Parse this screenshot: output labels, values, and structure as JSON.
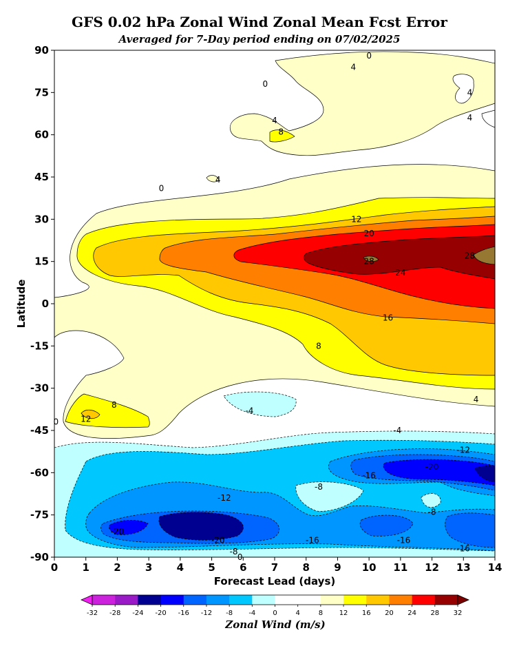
{
  "chart_data": {
    "type": "heatmap",
    "title": "GFS 0.02 hPa Zonal Wind Zonal Mean Fcst Error",
    "subtitle": "Averaged for 7-Day period ending on 07/02/2025",
    "xlabel": "Forecast Lead (days)",
    "ylabel": "Latitude",
    "xlim": [
      0,
      14
    ],
    "ylim": [
      -90,
      90
    ],
    "x_ticks": [
      "0",
      "1",
      "2",
      "3",
      "4",
      "5",
      "6",
      "7",
      "8",
      "9",
      "10",
      "11",
      "12",
      "13",
      "14"
    ],
    "y_ticks": [
      "90",
      "75",
      "60",
      "45",
      "30",
      "15",
      "0",
      "-15",
      "-30",
      "-45",
      "-60",
      "-75",
      "-90"
    ],
    "colorbar": {
      "label": "Zonal Wind (m/s)",
      "levels": [
        -32,
        -28,
        -24,
        -20,
        -16,
        -12,
        -8,
        -4,
        0,
        4,
        8,
        12,
        16,
        20,
        24,
        28,
        32
      ],
      "level_labels": [
        "-32",
        "-28",
        "-24",
        "-20",
        "-16",
        "-12",
        "-8",
        "-4",
        "0",
        "4",
        "8",
        "12",
        "16",
        "20",
        "24",
        "28",
        "32"
      ],
      "colors": [
        "#f020f0",
        "#cc22dd",
        "#9a1ac8",
        "#000090",
        "#0000ff",
        "#0064ff",
        "#0096ff",
        "#00c8ff",
        "#c0ffff",
        "#ffffff",
        "#ffffff",
        "#ffffc8",
        "#ffff00",
        "#ffc800",
        "#ff8000",
        "#ff0000",
        "#960000",
        "#967832",
        "#7a0000"
      ]
    },
    "contour_labels": [
      {
        "text": "0",
        "x": 10.0,
        "y": 88
      },
      {
        "text": "4",
        "x": 9.5,
        "y": 84
      },
      {
        "text": "0",
        "x": 6.7,
        "y": 78
      },
      {
        "text": "4",
        "x": 13.2,
        "y": 75
      },
      {
        "text": "4",
        "x": 13.2,
        "y": 66
      },
      {
        "text": "4",
        "x": 7.0,
        "y": 65
      },
      {
        "text": "8",
        "x": 7.2,
        "y": 61
      },
      {
        "text": "4",
        "x": 5.2,
        "y": 44
      },
      {
        "text": "0",
        "x": 3.4,
        "y": 41
      },
      {
        "text": "12",
        "x": 9.6,
        "y": 30
      },
      {
        "text": "20",
        "x": 10.0,
        "y": 25
      },
      {
        "text": "28",
        "x": 10.0,
        "y": 15
      },
      {
        "text": "28",
        "x": 13.2,
        "y": 17
      },
      {
        "text": "24",
        "x": 11.0,
        "y": 11
      },
      {
        "text": "16",
        "x": 10.6,
        "y": -5
      },
      {
        "text": "8",
        "x": 8.4,
        "y": -15
      },
      {
        "text": "4",
        "x": 13.4,
        "y": -34
      },
      {
        "text": "-4",
        "x": 6.2,
        "y": -38
      },
      {
        "text": "8",
        "x": 1.9,
        "y": -36
      },
      {
        "text": "12",
        "x": 1.0,
        "y": -41
      },
      {
        "text": "0",
        "x": 0.05,
        "y": -42
      },
      {
        "text": "-4",
        "x": 10.9,
        "y": -45
      },
      {
        "text": "-12",
        "x": 13.0,
        "y": -52
      },
      {
        "text": "-16",
        "x": 10.0,
        "y": -61
      },
      {
        "text": "-20",
        "x": 12.0,
        "y": -58
      },
      {
        "text": "-8",
        "x": 8.4,
        "y": -65
      },
      {
        "text": "-12",
        "x": 5.4,
        "y": -69
      },
      {
        "text": "-8",
        "x": 12.0,
        "y": -74
      },
      {
        "text": "-20",
        "x": 2.0,
        "y": -81
      },
      {
        "text": "-20",
        "x": 5.2,
        "y": -84
      },
      {
        "text": "-16",
        "x": 8.2,
        "y": -84
      },
      {
        "text": "-16",
        "x": 11.1,
        "y": -84
      },
      {
        "text": "-16",
        "x": 13.0,
        "y": -87
      },
      {
        "text": "-8",
        "x": 5.7,
        "y": -88
      },
      {
        "text": "0",
        "x": 5.9,
        "y": -90
      }
    ]
  }
}
